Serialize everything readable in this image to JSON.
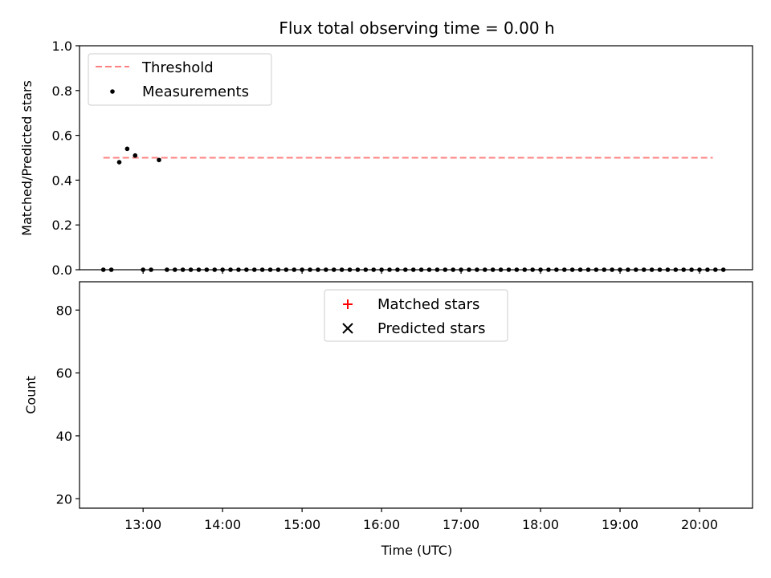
{
  "title": "Flux total observing time = 0.00 h",
  "chart_data": [
    {
      "type": "scatter",
      "xlabel": "",
      "ylabel": "Matched/Predicted stars",
      "xlim": [
        "12:12",
        "20:40"
      ],
      "ylim": [
        0,
        1.0
      ],
      "yticks": [
        "0.0",
        "0.2",
        "0.4",
        "0.6",
        "0.8",
        "1.0"
      ],
      "legend_position": "upper-left",
      "threshold": {
        "name": "Threshold",
        "color": "#ff8080",
        "style": "dashed",
        "value": 0.5,
        "x_range": [
          "12:30",
          "20:10"
        ]
      },
      "series": [
        {
          "name": "Measurements",
          "marker": "dot",
          "color": "#000000",
          "x": [
            "12:30",
            "12:36",
            "12:42",
            "12:48",
            "12:54",
            "13:00",
            "13:06",
            "13:12",
            "13:18",
            "13:24",
            "13:30",
            "13:36",
            "13:42",
            "13:48",
            "13:54",
            "14:00",
            "14:06",
            "14:12",
            "14:18",
            "14:24",
            "14:30",
            "14:36",
            "14:42",
            "14:48",
            "14:54",
            "15:00",
            "15:06",
            "15:12",
            "15:18",
            "15:24",
            "15:30",
            "15:36",
            "15:42",
            "15:48",
            "15:54",
            "16:00",
            "16:06",
            "16:12",
            "16:18",
            "16:24",
            "16:30",
            "16:36",
            "16:42",
            "16:48",
            "16:54",
            "17:00",
            "17:06",
            "17:12",
            "17:18",
            "17:24",
            "17:30",
            "17:36",
            "17:42",
            "17:48",
            "17:54",
            "18:00",
            "18:06",
            "18:12",
            "18:18",
            "18:24",
            "18:30",
            "18:36",
            "18:42",
            "18:48",
            "18:54",
            "19:00",
            "19:06",
            "19:12",
            "19:18",
            "19:24",
            "19:30",
            "19:36",
            "19:42",
            "19:48",
            "19:54",
            "20:00",
            "20:06",
            "20:12",
            "20:18"
          ],
          "values": [
            0,
            0,
            0.48,
            0.54,
            0.51,
            0,
            0,
            0.49,
            0,
            0,
            0,
            0,
            0,
            0,
            0,
            0,
            0,
            0,
            0,
            0,
            0,
            0,
            0,
            0,
            0,
            0,
            0,
            0,
            0,
            0,
            0,
            0,
            0,
            0,
            0,
            0,
            0,
            0,
            0,
            0,
            0,
            0,
            0,
            0,
            0,
            0,
            0,
            0,
            0,
            0,
            0,
            0,
            0,
            0,
            0,
            0,
            0,
            0,
            0,
            0,
            0,
            0,
            0,
            0,
            0,
            0,
            0,
            0,
            0,
            0,
            0,
            0,
            0,
            0,
            0,
            0,
            0,
            0,
            0
          ]
        }
      ]
    },
    {
      "type": "scatter",
      "xlabel": "Time (UTC)",
      "ylabel": "Count",
      "xlim": [
        "12:12",
        "20:40"
      ],
      "ylim": [
        17,
        89
      ],
      "yticks": [
        "20",
        "40",
        "60",
        "80"
      ],
      "xticks": [
        "13:00",
        "14:00",
        "15:00",
        "16:00",
        "17:00",
        "18:00",
        "19:00",
        "20:00"
      ],
      "legend_position": "upper-center",
      "series": [
        {
          "name": "Matched stars",
          "marker": "plus",
          "color": "#ff0000",
          "x": [],
          "values": []
        },
        {
          "name": "Predicted stars",
          "marker": "x",
          "color": "#000000",
          "x": [],
          "values": []
        }
      ]
    }
  ]
}
